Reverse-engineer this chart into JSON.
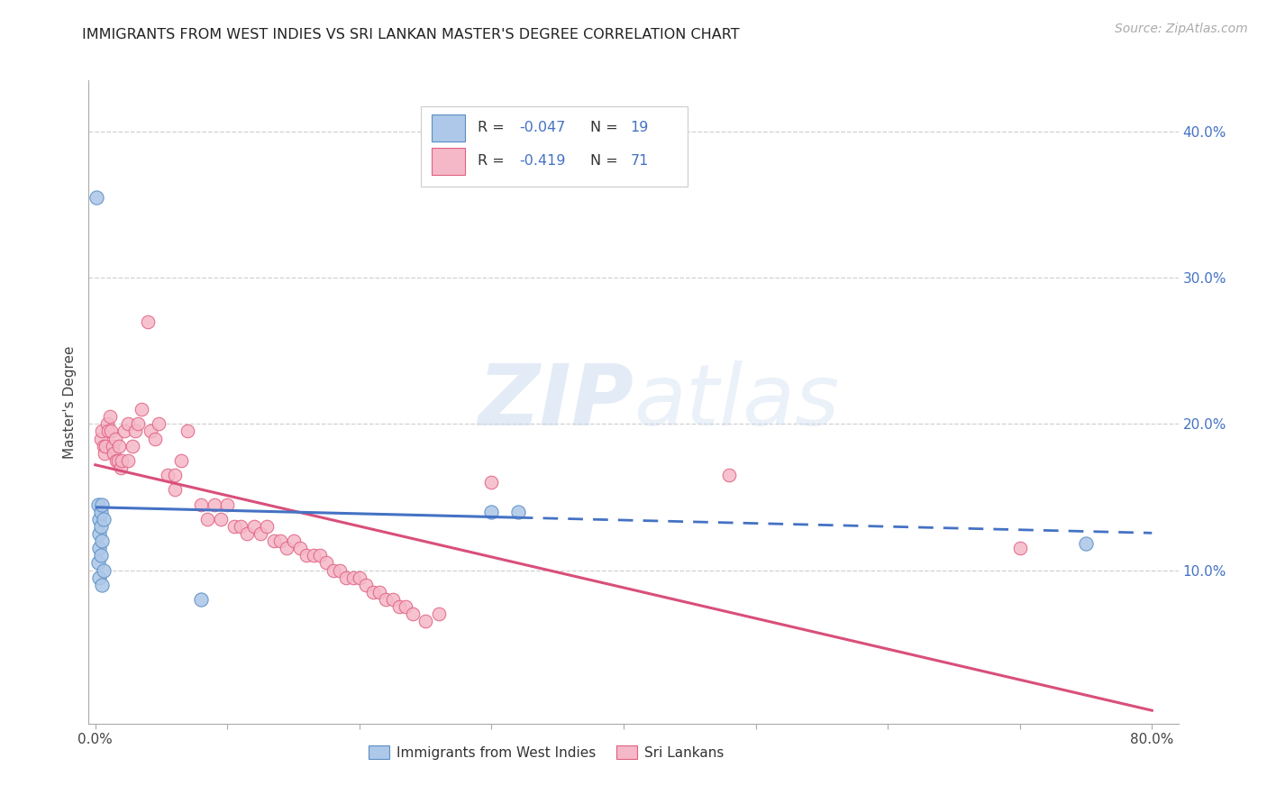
{
  "title": "IMMIGRANTS FROM WEST INDIES VS SRI LANKAN MASTER'S DEGREE CORRELATION CHART",
  "source_text": "Source: ZipAtlas.com",
  "ylabel": "Master's Degree",
  "xlim": [
    -0.005,
    0.82
  ],
  "ylim": [
    -0.005,
    0.435
  ],
  "xticks": [
    0.0,
    0.1,
    0.2,
    0.3,
    0.4,
    0.5,
    0.6,
    0.7,
    0.8
  ],
  "xticklabels": [
    "0.0%",
    "",
    "",
    "",
    "",
    "",
    "",
    "",
    "80.0%"
  ],
  "yticks_right": [
    0.0,
    0.1,
    0.2,
    0.3,
    0.4
  ],
  "yticklabels_right": [
    "",
    "10.0%",
    "20.0%",
    "30.0%",
    "40.0%"
  ],
  "legend_r1": "-0.047",
  "legend_n1": "19",
  "legend_r2": "-0.419",
  "legend_n2": "71",
  "blue_scatter_color": "#adc8e8",
  "blue_edge_color": "#5b8ec4",
  "pink_scatter_color": "#f5b8c8",
  "pink_edge_color": "#e06080",
  "blue_line_color": "#4472c4",
  "pink_line_color": "#d94f7a",
  "watermark_color": "#ddeeff",
  "grid_color": "#d0d0d0",
  "blue_x": [
    0.001,
    0.002,
    0.002,
    0.003,
    0.003,
    0.003,
    0.003,
    0.004,
    0.004,
    0.004,
    0.005,
    0.005,
    0.005,
    0.006,
    0.006,
    0.08,
    0.3,
    0.32,
    0.75
  ],
  "blue_y": [
    0.355,
    0.145,
    0.105,
    0.135,
    0.125,
    0.115,
    0.095,
    0.14,
    0.13,
    0.11,
    0.145,
    0.12,
    0.09,
    0.135,
    0.1,
    0.08,
    0.14,
    0.14,
    0.118
  ],
  "pink_x": [
    0.004,
    0.005,
    0.006,
    0.007,
    0.008,
    0.009,
    0.01,
    0.011,
    0.012,
    0.013,
    0.014,
    0.015,
    0.016,
    0.017,
    0.018,
    0.019,
    0.02,
    0.022,
    0.025,
    0.025,
    0.028,
    0.03,
    0.032,
    0.035,
    0.04,
    0.042,
    0.045,
    0.048,
    0.055,
    0.06,
    0.06,
    0.065,
    0.07,
    0.08,
    0.085,
    0.09,
    0.095,
    0.1,
    0.105,
    0.11,
    0.115,
    0.12,
    0.125,
    0.13,
    0.135,
    0.14,
    0.145,
    0.15,
    0.155,
    0.16,
    0.165,
    0.17,
    0.175,
    0.18,
    0.185,
    0.19,
    0.195,
    0.2,
    0.205,
    0.21,
    0.215,
    0.22,
    0.225,
    0.23,
    0.235,
    0.24,
    0.25,
    0.26,
    0.3,
    0.48,
    0.7
  ],
  "pink_y": [
    0.19,
    0.195,
    0.185,
    0.18,
    0.185,
    0.2,
    0.195,
    0.205,
    0.195,
    0.185,
    0.18,
    0.19,
    0.175,
    0.175,
    0.185,
    0.17,
    0.175,
    0.195,
    0.2,
    0.175,
    0.185,
    0.195,
    0.2,
    0.21,
    0.27,
    0.195,
    0.19,
    0.2,
    0.165,
    0.155,
    0.165,
    0.175,
    0.195,
    0.145,
    0.135,
    0.145,
    0.135,
    0.145,
    0.13,
    0.13,
    0.125,
    0.13,
    0.125,
    0.13,
    0.12,
    0.12,
    0.115,
    0.12,
    0.115,
    0.11,
    0.11,
    0.11,
    0.105,
    0.1,
    0.1,
    0.095,
    0.095,
    0.095,
    0.09,
    0.085,
    0.085,
    0.08,
    0.08,
    0.075,
    0.075,
    0.07,
    0.065,
    0.07,
    0.16,
    0.165,
    0.115
  ]
}
